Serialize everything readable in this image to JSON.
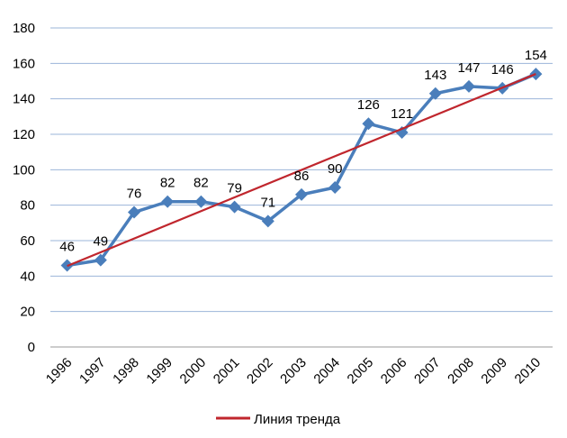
{
  "chart_data": {
    "type": "line",
    "categories": [
      "1996",
      "1997",
      "1998",
      "1999",
      "2000",
      "2001",
      "2002",
      "2003",
      "2004",
      "2005",
      "2006",
      "2007",
      "2008",
      "2009",
      "2010"
    ],
    "series": [
      {
        "values": [
          46,
          49,
          76,
          82,
          82,
          79,
          71,
          86,
          90,
          126,
          121,
          143,
          147,
          146,
          154
        ],
        "color": "#4a7ebb",
        "marker": "diamond",
        "data_labels": true
      }
    ],
    "trendline": {
      "name": "Линия тренда",
      "type": "linear",
      "color": "#c0262d"
    },
    "ylim": [
      0,
      180
    ],
    "yticks": [
      0,
      20,
      40,
      60,
      80,
      100,
      120,
      140,
      160,
      180
    ],
    "grid": true,
    "gridColor": "#9bb5d9",
    "legend": "bottom",
    "title": "",
    "xlabel": "",
    "ylabel": ""
  }
}
